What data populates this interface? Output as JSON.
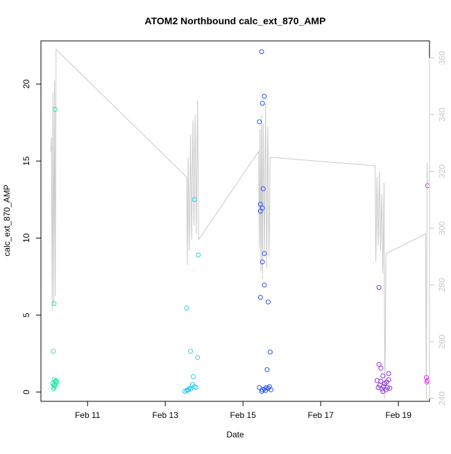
{
  "chart_data": {
    "type": "scatter",
    "title": "ATOM2 Northbound calc_ext_870_AMP",
    "xlabel": "Date",
    "ylabel": "calc_ext_870_AMP",
    "x_axis": {
      "unit": "days in February",
      "lim": [
        9.8,
        19.8
      ],
      "ticks": [
        11,
        13,
        15,
        17,
        19
      ],
      "tick_labels": [
        "Feb 11",
        "Feb 13",
        "Feb 15",
        "Feb 17",
        "Feb 19"
      ]
    },
    "y_axis": {
      "lim": [
        -0.6,
        22.8
      ],
      "ticks": [
        0,
        5,
        10,
        15,
        20
      ],
      "tick_labels": [
        "0",
        "5",
        "10",
        "15",
        "20"
      ]
    },
    "y2_axis": {
      "lim": [
        239,
        366
      ],
      "ticks": [
        240,
        260,
        280,
        300,
        320,
        340,
        360
      ],
      "tick_labels": [
        "240",
        "260",
        "280",
        "300",
        "320",
        "340",
        "360"
      ],
      "color": "#c8c8c8"
    },
    "grid": false,
    "legend": "none",
    "series": [
      {
        "color": "#2de6a3",
        "points": [
          [
            10.16,
            18.35
          ],
          [
            10.14,
            5.75
          ],
          [
            10.12,
            2.65
          ],
          [
            10.14,
            0.8
          ],
          [
            10.18,
            0.65
          ],
          [
            10.1,
            0.55
          ],
          [
            10.16,
            0.4
          ],
          [
            10.14,
            0.3
          ],
          [
            10.12,
            0.2
          ],
          [
            10.2,
            0.75
          ],
          [
            10.17,
            0.7
          ],
          [
            10.15,
            0.5
          ],
          [
            10.13,
            0.45
          ],
          [
            10.21,
            0.6
          ]
        ]
      },
      {
        "color": "#2ec9ea",
        "points": [
          [
            13.75,
            12.5
          ],
          [
            13.85,
            8.9
          ],
          [
            13.55,
            5.45
          ],
          [
            13.65,
            2.65
          ],
          [
            13.83,
            2.25
          ],
          [
            13.72,
            1.0
          ],
          [
            13.7,
            0.5
          ],
          [
            13.79,
            0.3
          ],
          [
            13.65,
            0.2
          ],
          [
            13.6,
            0.15
          ],
          [
            13.55,
            0.1
          ],
          [
            13.5,
            0.05
          ],
          [
            13.75,
            0.35
          ],
          [
            13.62,
            0.25
          ],
          [
            13.58,
            0.12
          ]
        ]
      },
      {
        "color": "#2451f0",
        "points": [
          [
            15.48,
            22.1
          ],
          [
            15.55,
            19.2
          ],
          [
            15.5,
            18.75
          ],
          [
            15.42,
            17.55
          ],
          [
            15.52,
            13.2
          ],
          [
            15.45,
            12.2
          ],
          [
            15.5,
            11.95
          ],
          [
            15.45,
            11.75
          ],
          [
            15.55,
            9.0
          ],
          [
            15.5,
            8.45
          ],
          [
            15.55,
            6.95
          ],
          [
            15.45,
            6.15
          ],
          [
            15.65,
            5.85
          ],
          [
            15.7,
            2.6
          ],
          [
            15.62,
            1.45
          ],
          [
            15.42,
            0.3
          ],
          [
            15.5,
            0.15
          ],
          [
            15.55,
            0.2
          ],
          [
            15.6,
            0.3
          ],
          [
            15.65,
            0.25
          ],
          [
            15.72,
            0.15
          ],
          [
            15.68,
            0.35
          ],
          [
            15.58,
            0.1
          ],
          [
            15.48,
            0.05
          ]
        ]
      },
      {
        "color": "#8a2be6",
        "points": [
          [
            18.5,
            6.8
          ],
          [
            18.5,
            1.8
          ],
          [
            18.55,
            1.55
          ],
          [
            18.75,
            1.2
          ],
          [
            18.6,
            1.05
          ],
          [
            18.75,
            0.8
          ],
          [
            18.7,
            0.65
          ],
          [
            18.55,
            0.7
          ],
          [
            18.45,
            0.75
          ],
          [
            18.65,
            0.55
          ],
          [
            18.52,
            0.45
          ],
          [
            18.62,
            0.35
          ],
          [
            18.72,
            0.3
          ],
          [
            18.48,
            0.3
          ],
          [
            18.58,
            0.2
          ],
          [
            18.68,
            0.15
          ],
          [
            18.6,
            0.05
          ],
          [
            18.78,
            0.25
          ]
        ]
      },
      {
        "color": "#e32de8",
        "points": [
          [
            19.75,
            13.4
          ],
          [
            19.72,
            0.95
          ],
          [
            19.75,
            0.75
          ],
          [
            19.73,
            0.65
          ]
        ]
      }
    ],
    "overlay_line": {
      "axis": "y2",
      "color": "#c8c8c8",
      "points": [
        [
          10.05,
          327
        ],
        [
          10.07,
          332
        ],
        [
          10.09,
          271
        ],
        [
          10.11,
          348
        ],
        [
          10.13,
          273
        ],
        [
          10.15,
          352
        ],
        [
          10.17,
          276
        ],
        [
          10.19,
          363
        ],
        [
          13.55,
          318
        ],
        [
          13.57,
          287
        ],
        [
          13.59,
          325
        ],
        [
          13.62,
          292
        ],
        [
          13.65,
          333
        ],
        [
          13.68,
          296
        ],
        [
          13.71,
          338
        ],
        [
          13.74,
          301
        ],
        [
          13.77,
          340
        ],
        [
          13.8,
          298
        ],
        [
          13.83,
          345
        ],
        [
          13.86,
          296
        ],
        [
          15.4,
          327
        ],
        [
          15.42,
          293
        ],
        [
          15.44,
          335
        ],
        [
          15.46,
          285
        ],
        [
          15.48,
          340
        ],
        [
          15.5,
          282
        ],
        [
          15.52,
          337
        ],
        [
          15.55,
          290
        ],
        [
          15.58,
          344
        ],
        [
          15.61,
          286
        ],
        [
          15.64,
          336
        ],
        [
          15.67,
          290
        ],
        [
          15.7,
          325
        ],
        [
          18.4,
          322
        ],
        [
          18.42,
          288
        ],
        [
          18.45,
          318
        ],
        [
          18.48,
          294
        ],
        [
          18.51,
          320
        ],
        [
          18.54,
          292
        ],
        [
          18.57,
          312
        ],
        [
          18.6,
          284
        ],
        [
          18.63,
          316
        ],
        [
          18.65,
          240
        ],
        [
          18.68,
          291
        ],
        [
          19.7,
          298
        ],
        [
          19.72,
          240
        ],
        [
          19.74,
          323
        ],
        [
          19.75,
          316
        ]
      ]
    }
  }
}
